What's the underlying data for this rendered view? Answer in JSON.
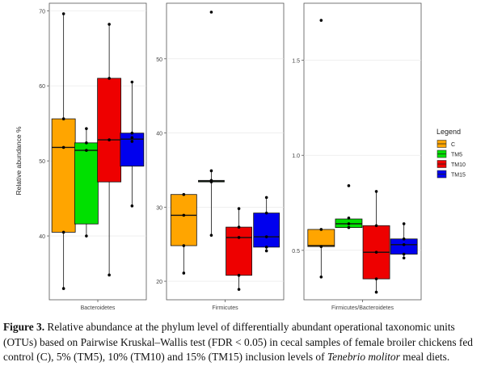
{
  "chart_data": {
    "type": "boxplot",
    "ylabel": "Relative abundance %",
    "legend": {
      "title": "Legend",
      "placement": "right",
      "entries": [
        {
          "name": "C",
          "color": "#FFA500"
        },
        {
          "name": "TM5",
          "color": "#00E000"
        },
        {
          "name": "TM10",
          "color": "#EE0000"
        },
        {
          "name": "TM15",
          "color": "#0000EE"
        }
      ]
    },
    "panels": [
      {
        "label": "Bacteroidetes",
        "ylim": [
          31.5,
          71
        ],
        "ticks": [
          40,
          50,
          60,
          70
        ],
        "groups": [
          {
            "name": "C",
            "min": 33.0,
            "q1": 40.5,
            "median": 51.8,
            "q3": 55.6,
            "max": 69.6,
            "points": [
              33.0,
              40.5,
              51.8,
              55.6,
              69.6
            ]
          },
          {
            "name": "TM5",
            "min": 40.0,
            "q1": 41.6,
            "median": 51.4,
            "q3": 52.4,
            "max": 54.3,
            "points": [
              40.0,
              51.4,
              52.4,
              54.3
            ]
          },
          {
            "name": "TM10",
            "min": 34.8,
            "q1": 47.2,
            "median": 52.8,
            "q3": 61.0,
            "max": 68.2,
            "points": [
              34.8,
              52.8,
              61.0,
              68.2
            ]
          },
          {
            "name": "TM15",
            "min": 44.0,
            "q1": 49.3,
            "median": 52.9,
            "q3": 53.7,
            "max": 60.5,
            "points": [
              44.0,
              52.6,
              53.1,
              53.7,
              60.5
            ]
          }
        ]
      },
      {
        "label": "Firmicutes",
        "ylim": [
          17.5,
          57.5
        ],
        "ticks": [
          20,
          30,
          40,
          50
        ],
        "groups": [
          {
            "name": "C",
            "min": 21.1,
            "q1": 24.8,
            "median": 28.9,
            "q3": 31.7,
            "max": 31.7,
            "points": [
              21.1,
              24.8,
              28.9,
              31.7
            ]
          },
          {
            "name": "TM5",
            "min": 26.2,
            "q1": 33.4,
            "median": 33.5,
            "q3": 33.6,
            "max": 34.9,
            "points": [
              26.2,
              33.4,
              33.6,
              34.9,
              56.3
            ]
          },
          {
            "name": "TM10",
            "min": 18.9,
            "q1": 20.8,
            "median": 25.9,
            "q3": 27.3,
            "max": 29.8,
            "points": [
              18.9,
              20.8,
              25.9,
              27.3,
              29.8
            ]
          },
          {
            "name": "TM15",
            "min": 24.1,
            "q1": 24.6,
            "median": 26.0,
            "q3": 29.2,
            "max": 31.3,
            "points": [
              24.1,
              24.6,
              26.0,
              29.2,
              31.3
            ]
          }
        ]
      },
      {
        "label": "Firmicutes/Bacteroidetes",
        "ylim": [
          0.24,
          1.8
        ],
        "ticks": [
          0.5,
          1.0,
          1.5
        ],
        "tick_labels": [
          "0.5",
          "1.0",
          "1.5"
        ],
        "groups": [
          {
            "name": "C",
            "min": 0.36,
            "q1": 0.52,
            "median": 0.525,
            "q3": 0.61,
            "max": 0.61,
            "points": [
              0.36,
              0.52,
              0.61,
              1.71
            ]
          },
          {
            "name": "TM5",
            "min": 0.62,
            "q1": 0.62,
            "median": 0.64,
            "q3": 0.665,
            "max": 0.67,
            "points": [
              0.62,
              0.64,
              0.67,
              0.84
            ]
          },
          {
            "name": "TM10",
            "min": 0.28,
            "q1": 0.35,
            "median": 0.49,
            "q3": 0.63,
            "max": 0.81,
            "points": [
              0.28,
              0.35,
              0.49,
              0.63,
              0.81
            ]
          },
          {
            "name": "TM15",
            "min": 0.46,
            "q1": 0.48,
            "median": 0.53,
            "q3": 0.56,
            "max": 0.64,
            "points": [
              0.46,
              0.48,
              0.53,
              0.56,
              0.64
            ]
          }
        ]
      }
    ]
  },
  "caption": {
    "label": "Figure 3.",
    "text_before_italic": " Relative abundance at the phylum level of differentially abundant operational taxonomic units (OTUs) based on Pairwise Kruskal–Wallis test (FDR < 0.05) in cecal samples of female broiler chickens fed control (C), 5% (TM5), 10% (TM10) and 15% (TM15) inclusion levels of ",
    "italic": "Tenebrio molitor",
    "text_after_italic": " meal diets."
  }
}
